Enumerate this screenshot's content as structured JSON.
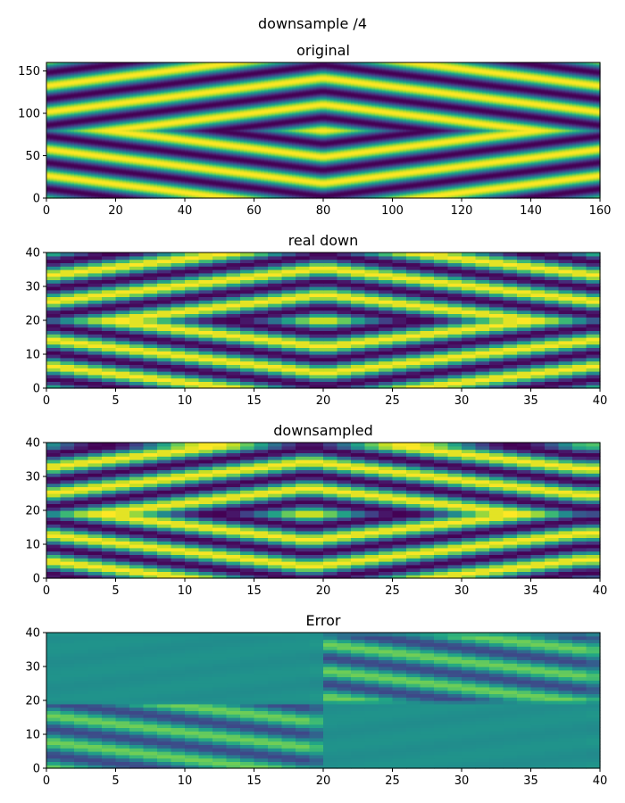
{
  "figure": {
    "suptitle": "downsample /4"
  },
  "palette": {
    "low": "#440154",
    "mid": "#21918c",
    "high": "#fde725"
  },
  "chart_data": [
    {
      "type": "heatmap",
      "title": "original",
      "colormap": "viridis",
      "xlim": [
        0,
        160
      ],
      "ylim": [
        0,
        160
      ],
      "xticks": [
        "0",
        "20",
        "40",
        "60",
        "80",
        "100",
        "120",
        "140",
        "160"
      ],
      "yticks": [
        "0",
        "50",
        "100",
        "150"
      ],
      "grid_size": [
        160,
        160
      ],
      "pattern": "symmetric diamond waves centred at (80, 80)"
    },
    {
      "type": "heatmap",
      "title": "real down",
      "colormap": "viridis",
      "xlim": [
        0,
        40
      ],
      "ylim": [
        0,
        40
      ],
      "xticks": [
        "0",
        "5",
        "10",
        "15",
        "20",
        "25",
        "30",
        "35",
        "40"
      ],
      "yticks": [
        "0",
        "10",
        "20",
        "30",
        "40"
      ],
      "grid_size": [
        40,
        40
      ],
      "pattern": "diamond waves sampled on a 40x40 grid"
    },
    {
      "type": "heatmap",
      "title": "downsampled",
      "colormap": "viridis",
      "xlim": [
        0,
        40
      ],
      "ylim": [
        0,
        40
      ],
      "xticks": [
        "0",
        "5",
        "10",
        "15",
        "20",
        "25",
        "30",
        "35",
        "40"
      ],
      "yticks": [
        "0",
        "10",
        "20",
        "30",
        "40"
      ],
      "grid_size": [
        40,
        40
      ],
      "pattern": "diamond waves, shifted one cell left/down"
    },
    {
      "type": "heatmap",
      "title": "Error",
      "colormap": "viridis",
      "xlim": [
        0,
        40
      ],
      "ylim": [
        0,
        40
      ],
      "xticks": [
        "0",
        "5",
        "10",
        "15",
        "20",
        "25",
        "30",
        "35",
        "40"
      ],
      "yticks": [
        "0",
        "10",
        "20",
        "30",
        "40"
      ],
      "grid_size": [
        40,
        40
      ],
      "pattern": "difference of real down and downsampled"
    }
  ]
}
